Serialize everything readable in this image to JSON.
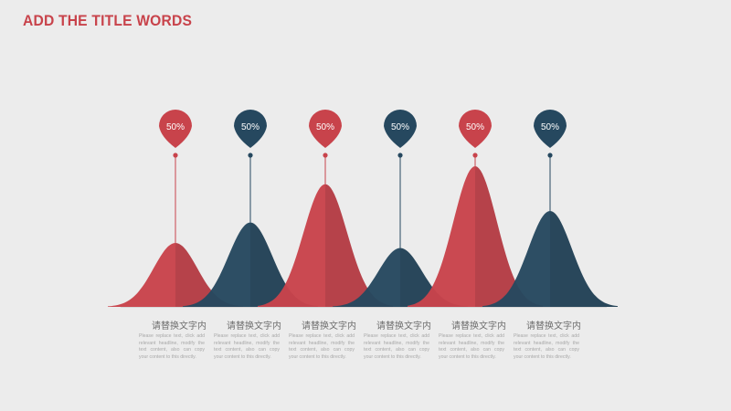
{
  "title": "ADD THE TITLE WORDS",
  "colors": {
    "red": "#c8434b",
    "blue": "#26485f",
    "background": "#ececec"
  },
  "items": [
    {
      "percent": "50%",
      "value": 0.5,
      "color": "red",
      "label": "请替换文字内",
      "body": "Please replace text, click add relevant headline, modify the text content, also can copy your content to this directly."
    },
    {
      "percent": "50%",
      "value": 0.66,
      "color": "blue",
      "label": "请替换文字内",
      "body": "Please replace text, click add relevant headline, modify the text content, also can copy your content to this directly."
    },
    {
      "percent": "50%",
      "value": 0.96,
      "color": "red",
      "label": "请替换文字内",
      "body": "Please replace text, click add relevant headline, modify the text content, also can copy your content to this directly."
    },
    {
      "percent": "50%",
      "value": 0.46,
      "color": "blue",
      "label": "请替换文字内",
      "body": "Please replace text, click add relevant headline, modify the text content, also can copy your content to this directly."
    },
    {
      "percent": "50%",
      "value": 1.1,
      "color": "red",
      "label": "请替换文字内",
      "body": "Please replace text, click add relevant headline, modify the text content, also can copy your content to this directly."
    },
    {
      "percent": "50%",
      "value": 0.75,
      "color": "blue",
      "label": "请替换文字内",
      "body": "Please replace text, click add relevant headline, modify the text content, also can copy your content to this directly."
    }
  ]
}
